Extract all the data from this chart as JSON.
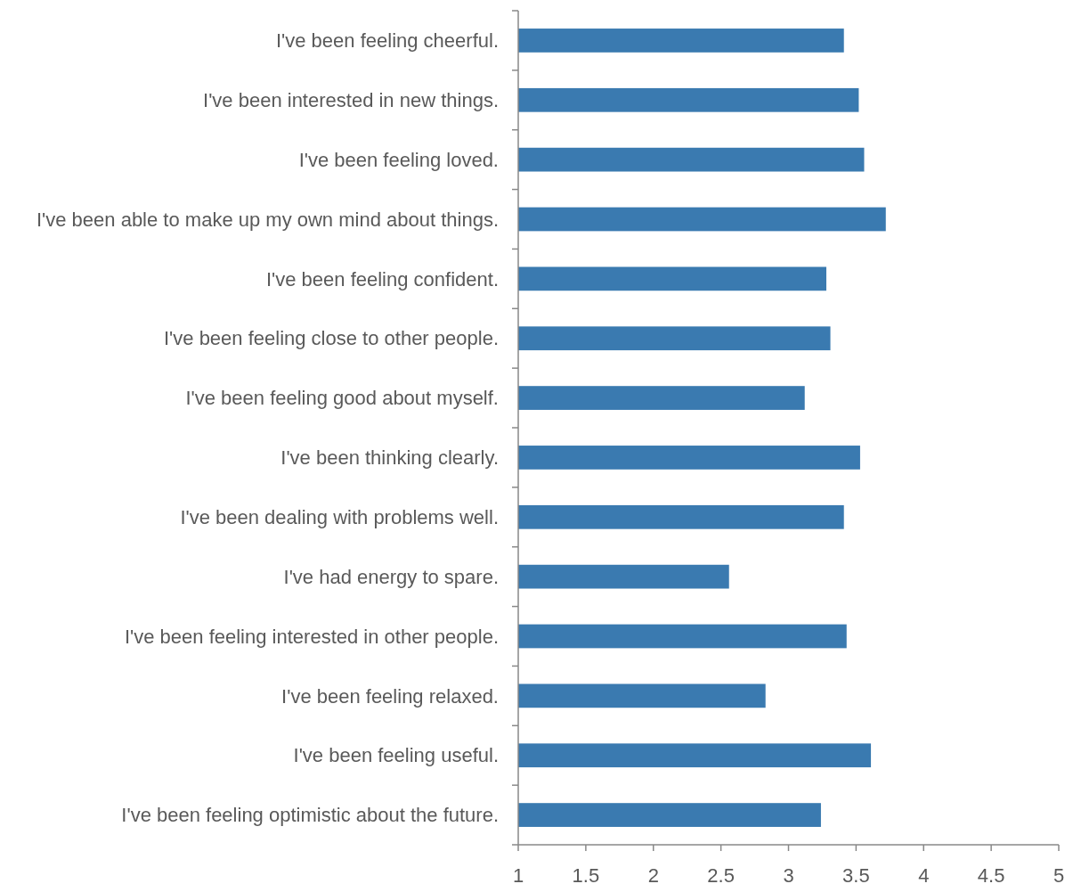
{
  "chart_data": {
    "type": "bar",
    "orientation": "horizontal",
    "categories": [
      "I've been feeling cheerful.",
      "I've been interested in new things.",
      "I've been feeling loved.",
      "I've been able to make up my own mind about things.",
      "I've been feeling confident.",
      "I've been feeling close to other people.",
      "I've been feeling good about myself.",
      "I've been thinking clearly.",
      "I've been dealing with problems well.",
      "I've had energy to spare.",
      "I've been feeling interested in other people.",
      "I've been feeling relaxed.",
      "I've been feeling useful.",
      "I've been feeling optimistic about the future."
    ],
    "values": [
      3.41,
      3.52,
      3.56,
      3.72,
      3.28,
      3.31,
      3.12,
      3.53,
      3.41,
      2.56,
      3.43,
      2.83,
      3.61,
      3.24
    ],
    "color": "#3a7ab0",
    "xlim": [
      1,
      5
    ],
    "xticks": [
      1,
      1.5,
      2,
      2.5,
      3,
      3.5,
      4,
      4.5,
      5
    ],
    "grid": false
  }
}
